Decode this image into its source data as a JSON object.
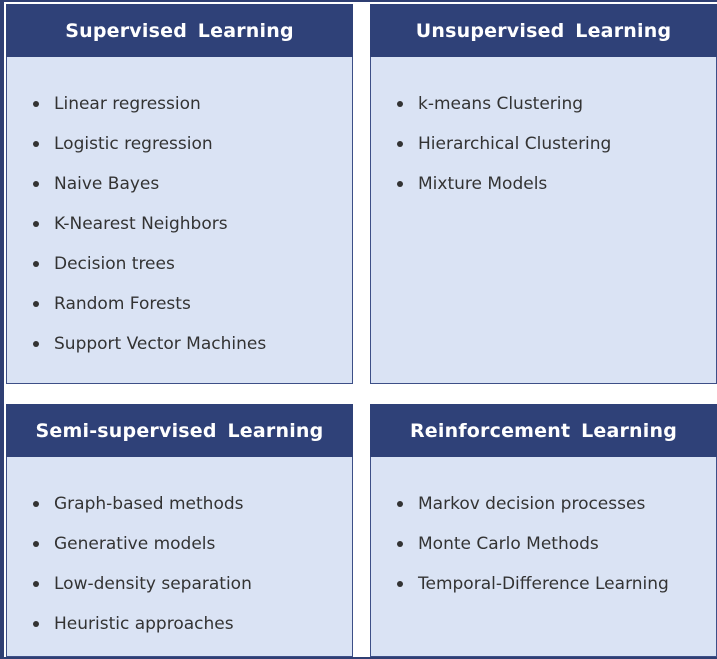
{
  "panels": [
    {
      "title": "Supervised Learning",
      "items": [
        "Linear regression",
        "Logistic regression",
        "Naive Bayes",
        "K-Nearest Neighbors",
        "Decision trees",
        "Random Forests",
        "Support Vector Machines"
      ]
    },
    {
      "title": "Unsupervised Learning",
      "items": [
        "k-means Clustering",
        "Hierarchical Clustering",
        "Mixture Models"
      ]
    },
    {
      "title": "Semi-supervised Learning",
      "items": [
        "Graph-based methods",
        "Generative models",
        "Low-density separation",
        "Heuristic approaches"
      ]
    },
    {
      "title": "Reinforcement Learning",
      "items": [
        "Markov decision processes",
        "Monte Carlo Methods",
        "Temporal-Difference Learning"
      ]
    }
  ],
  "colors": {
    "header_bg": "#2f4178",
    "body_bg": "#dae3f4",
    "text": "#333333"
  }
}
